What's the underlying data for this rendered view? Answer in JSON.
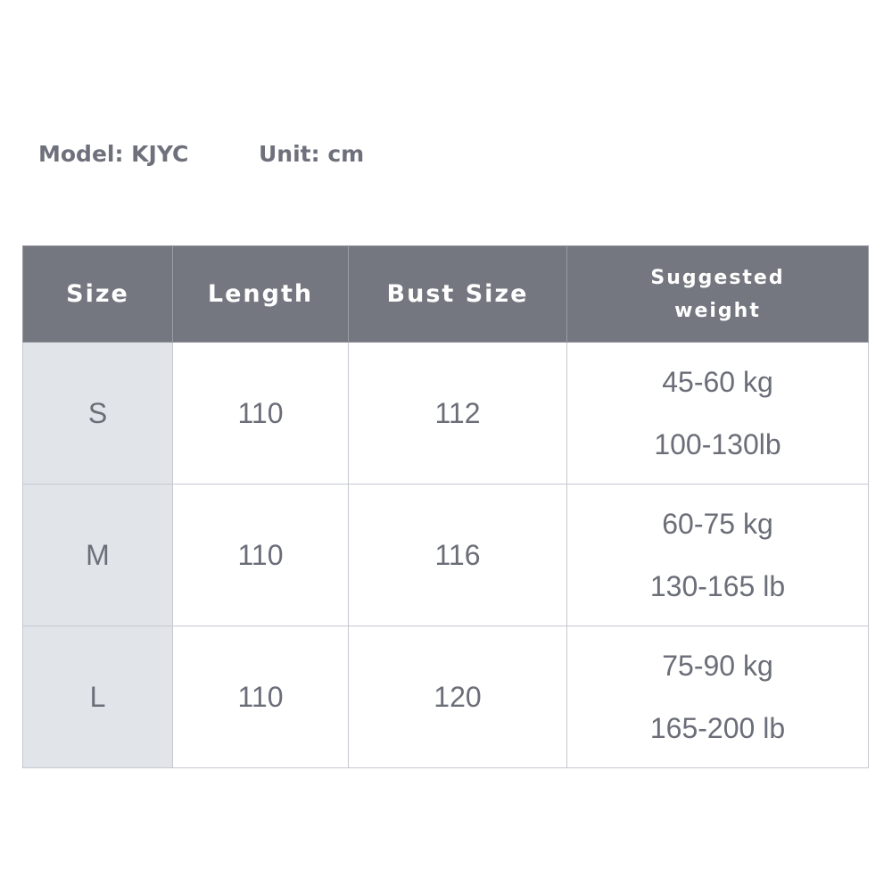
{
  "header": {
    "model": "Model: KJYC",
    "unit": "Unit: cm"
  },
  "table": {
    "columns": [
      "Size",
      "Length",
      "Bust Size",
      "Suggested",
      "weight"
    ],
    "rows": [
      {
        "size": "S",
        "length": "110",
        "bust": "112",
        "weight_kg": "45-60 kg",
        "weight_lb": "100-130lb"
      },
      {
        "size": "M",
        "length": "110",
        "bust": "116",
        "weight_kg": "60-75 kg",
        "weight_lb": "130-165 lb"
      },
      {
        "size": "L",
        "length": "110",
        "bust": "120",
        "weight_kg": "75-90 kg",
        "weight_lb": "165-200 lb"
      }
    ]
  },
  "colors": {
    "header_bg": "#74777f",
    "size_column_bg": "#e1e5ea",
    "text": "#6b6e78"
  }
}
